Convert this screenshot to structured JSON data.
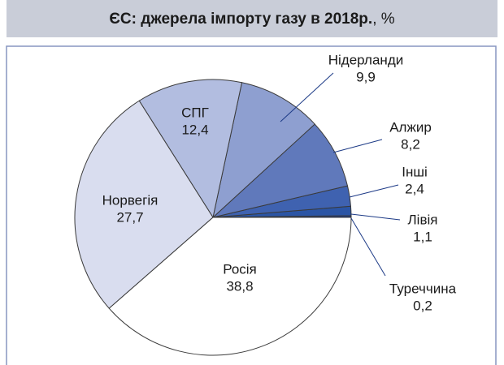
{
  "chart_data": {
    "type": "pie",
    "title": "ЄС: джерела імпорту газу в 2018р.",
    "title_suffix": ", %",
    "categories": [
      "Туреччина",
      "Лівія",
      "Інші",
      "Алжир",
      "Нідерланди",
      "СПГ",
      "Норвегія",
      "Росія"
    ],
    "values": [
      0.2,
      1.1,
      2.4,
      8.2,
      9.9,
      12.4,
      27.7,
      38.8
    ],
    "value_labels": [
      "0,2",
      "1,1",
      "2,4",
      "8,2",
      "9,9",
      "12,4",
      "27,7",
      "38,8"
    ],
    "colors": [
      "#1c3a86",
      "#2b55a5",
      "#3f62b0",
      "#6079bb",
      "#8e9fd0",
      "#b2bde0",
      "#d9ddef",
      "#ffffff"
    ]
  }
}
